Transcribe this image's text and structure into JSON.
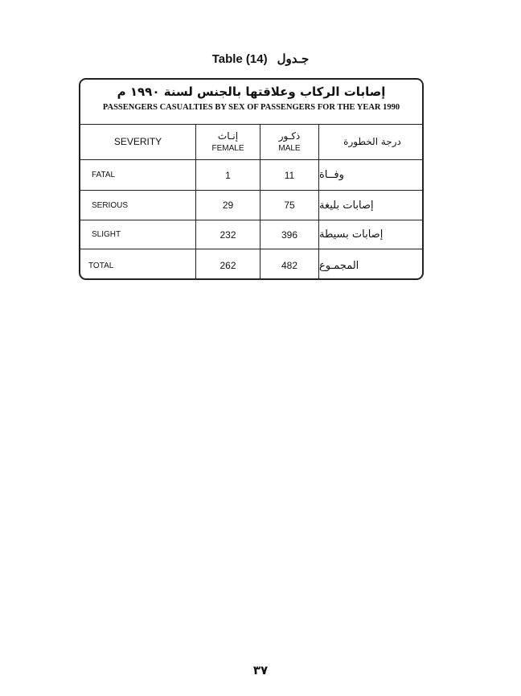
{
  "caption": {
    "en": "Table (14)",
    "ar": "جـدول"
  },
  "title": {
    "ar": "إصابات الركاب وعلاقتها بالجنس لسنة ١٩٩٠ م",
    "en": "PASSENGERS CASUALTIES BY SEX OF PASSENGERS FOR THE YEAR 1990"
  },
  "headers": {
    "severity": "SEVERITY",
    "female_ar": "إنـاث",
    "female": "FEMALE",
    "male_ar": "ذكـور",
    "male": "MALE",
    "severity_ar": "درجة الخطورة"
  },
  "rows": [
    {
      "en": "FATAL",
      "female": "1",
      "male": "11",
      "ar": "وفــاة"
    },
    {
      "en": "SERIOUS",
      "female": "29",
      "male": "75",
      "ar": "إصابات بليغة"
    },
    {
      "en": "SLIGHT",
      "female": "232",
      "male": "396",
      "ar": "إصابات بسيطة"
    },
    {
      "en": "TOTAL",
      "female": "262",
      "male": "482",
      "ar": "المجمـوع"
    }
  ],
  "page_number": "٣٧"
}
